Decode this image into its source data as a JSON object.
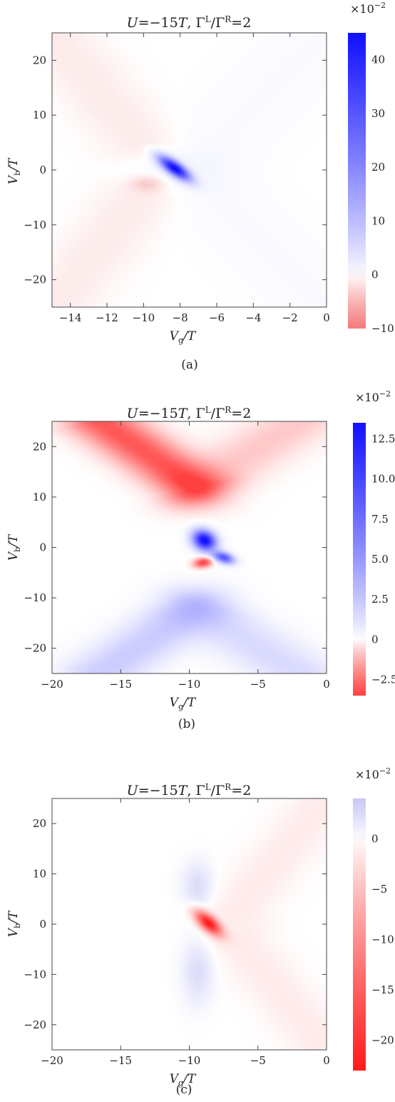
{
  "panels": [
    {
      "title": {
        "u": "U",
        "eq": "=−15",
        "t": "T",
        "sep": ",  ",
        "g1": "Γ",
        "s1": "L",
        "slash": "/",
        "g2": "Γ",
        "s2": "R",
        "rhs": "=2"
      },
      "ylabel": {
        "v": "V",
        "sub": "b",
        "rest": "/T"
      },
      "xlabel": {
        "v": "V",
        "sub": "g",
        "rest": "/T"
      },
      "caption": "(a)",
      "exponent": {
        "base": "×10",
        "pow": "−2"
      }
    },
    {
      "title": {
        "u": "U",
        "eq": "=−15",
        "t": "T",
        "sep": ",  ",
        "g1": "Γ",
        "s1": "L",
        "slash": "/",
        "g2": "Γ",
        "s2": "R",
        "rhs": "=2"
      },
      "ylabel": {
        "v": "V",
        "sub": "b",
        "rest": "/T"
      },
      "xlabel": {
        "v": "V",
        "sub": "g",
        "rest": "/T"
      },
      "caption": "(b)",
      "exponent": {
        "base": "×10",
        "pow": "−2"
      }
    },
    {
      "title": {
        "u": "U",
        "eq": "=−15",
        "t": "T",
        "sep": ",  ",
        "g1": "Γ",
        "s1": "L",
        "slash": "/",
        "g2": "Γ",
        "s2": "R",
        "rhs": "=2"
      },
      "ylabel": {
        "v": "V",
        "sub": "b",
        "rest": "/T"
      },
      "xlabel": {
        "v": "V",
        "sub": "g",
        "rest": "/T"
      },
      "caption": "(c)",
      "exponent": {
        "base": "×10",
        "pow": "−2"
      }
    }
  ],
  "chart_data": [
    {
      "type": "heatmap",
      "title": "U=−15T,  ΓL/ΓR=2",
      "xlabel": "Vg/T",
      "ylabel": "Vb/T",
      "xlim": [
        -15,
        0
      ],
      "ylim": [
        -25,
        25
      ],
      "xticks": [
        -14,
        -12,
        -10,
        -8,
        -6,
        -4,
        -2,
        0
      ],
      "yticks": [
        20,
        10,
        0,
        -10,
        -20
      ],
      "xtick_labels": [
        "−14",
        "−12",
        "−10",
        "−8",
        "−6",
        "−4",
        "−2",
        "0"
      ],
      "ytick_labels": [
        "20",
        "10",
        "0",
        "−10",
        "−20"
      ],
      "colorbar": {
        "range": [
          -10,
          45
        ],
        "ticks": [
          40,
          30,
          20,
          10,
          0,
          -10
        ],
        "tick_labels": [
          "40",
          "30",
          "20",
          "10",
          "0",
          "−10"
        ],
        "scale": "×10^-2",
        "pos_color": "#1010ff",
        "neg_color": "#f47a7a",
        "pos_max": 45,
        "neg_max": 10
      },
      "features": [
        {
          "kind": "line",
          "p1": [
            -10.2,
            5
          ],
          "p2": [
            -15,
            25
          ],
          "amp": -1.1,
          "sigma": 1.5
        },
        {
          "kind": "line",
          "p1": [
            -10.2,
            -5
          ],
          "p2": [
            -15,
            -25
          ],
          "amp": -1.1,
          "sigma": 1.5
        },
        {
          "kind": "line",
          "p1": [
            -7.5,
            0
          ],
          "p2": [
            0,
            25
          ],
          "amp": 0.55,
          "sigma": 2.0
        },
        {
          "kind": "line",
          "p1": [
            -7.5,
            0
          ],
          "p2": [
            0,
            -25
          ],
          "amp": 0.55,
          "sigma": 2.0
        },
        {
          "kind": "blob",
          "c": [
            -8.3,
            0.3
          ],
          "sx": 0.55,
          "sy": 1.4,
          "rho": -0.75,
          "amp": 45
        },
        {
          "kind": "blob",
          "c": [
            -9.8,
            -2.5
          ],
          "sx": 0.6,
          "sy": 1.0,
          "rho": 0,
          "amp": -3
        }
      ]
    },
    {
      "type": "heatmap",
      "title": "U=−15T,  ΓL/ΓR=2",
      "xlabel": "Vg/T",
      "ylabel": "Vb/T",
      "xlim": [
        -20,
        0
      ],
      "ylim": [
        -25,
        25
      ],
      "xticks": [
        -20,
        -15,
        -10,
        -5,
        0
      ],
      "yticks": [
        20,
        10,
        0,
        -10,
        -20
      ],
      "xtick_labels": [
        "−20",
        "−15",
        "−10",
        "−5",
        "0"
      ],
      "ytick_labels": [
        "20",
        "10",
        "0",
        "−10",
        "−20"
      ],
      "colorbar": {
        "range": [
          -3.5,
          13.5
        ],
        "ticks": [
          12.5,
          10.0,
          7.5,
          5.0,
          2.5,
          0,
          -2.5
        ],
        "tick_labels": [
          "12.5",
          "10.0",
          "7.5",
          "5.0",
          "2.5",
          "0",
          "−2.5"
        ],
        "scale": "×10^-2",
        "pos_color": "#1010ff",
        "neg_color": "#ff4040",
        "pos_max": 13.5,
        "neg_max": 3.5
      },
      "features": [
        {
          "kind": "line",
          "p1": [
            -9.5,
            12
          ],
          "p2": [
            -16.5,
            25
          ],
          "amp": -3.0,
          "sigma": 1.6
        },
        {
          "kind": "line",
          "p1": [
            -9.5,
            12
          ],
          "p2": [
            -2,
            25
          ],
          "amp": -0.8,
          "sigma": 1.8
        },
        {
          "kind": "line",
          "p1": [
            -9.5,
            -12
          ],
          "p2": [
            -16.5,
            -25
          ],
          "amp": 2.2,
          "sigma": 1.7
        },
        {
          "kind": "line",
          "p1": [
            -9.5,
            -12
          ],
          "p2": [
            -2,
            -25
          ],
          "amp": 1.5,
          "sigma": 1.8
        },
        {
          "kind": "blob",
          "c": [
            -8.9,
            1.4
          ],
          "sx": 0.55,
          "sy": 1.3,
          "rho": -0.2,
          "amp": 14
        },
        {
          "kind": "blob",
          "c": [
            -7.5,
            -2.0
          ],
          "sx": 0.5,
          "sy": 0.8,
          "rho": -0.4,
          "amp": 9
        },
        {
          "kind": "blob",
          "c": [
            -9.0,
            -3.0
          ],
          "sx": 0.45,
          "sy": 0.7,
          "rho": 0.2,
          "amp": -3.5
        }
      ]
    },
    {
      "type": "heatmap",
      "title": "U=−15T,  ΓL/ΓR=2",
      "xlabel": "Vg/T",
      "ylabel": "Vb/T",
      "xlim": [
        -20,
        0
      ],
      "ylim": [
        -25,
        25
      ],
      "xticks": [
        -20,
        -15,
        -10,
        -5,
        0
      ],
      "yticks": [
        20,
        10,
        0,
        -10,
        -20
      ],
      "xtick_labels": [
        "−20",
        "−15",
        "−10",
        "−5",
        "0"
      ],
      "ytick_labels": [
        "20",
        "10",
        "0",
        "−10",
        "−20"
      ],
      "colorbar": {
        "range": [
          -23,
          4
        ],
        "ticks": [
          0,
          -5,
          -10,
          -15,
          -20
        ],
        "tick_labels": [
          "0",
          "−5",
          "−10",
          "−15",
          "−20"
        ],
        "scale": "×10^-2",
        "pos_color": "#c8c8f8",
        "neg_color": "#ff1a1a",
        "pos_max": 4,
        "neg_max": 23
      },
      "features": [
        {
          "kind": "line",
          "p1": [
            -6.5,
            3
          ],
          "p2": [
            0,
            25
          ],
          "amp": -1.3,
          "sigma": 1.6
        },
        {
          "kind": "line",
          "p1": [
            -6.5,
            -3
          ],
          "p2": [
            0,
            -25
          ],
          "amp": -1.3,
          "sigma": 1.6
        },
        {
          "kind": "blob",
          "c": [
            -9.4,
            7.5
          ],
          "sx": 0.75,
          "sy": 3.2,
          "rho": 0,
          "amp": 2.3
        },
        {
          "kind": "blob",
          "c": [
            -9.4,
            -9.5
          ],
          "sx": 0.75,
          "sy": 4.2,
          "rho": 0,
          "amp": 2.3
        },
        {
          "kind": "blob",
          "c": [
            -8.6,
            0.2
          ],
          "sx": 0.65,
          "sy": 1.6,
          "rho": -0.65,
          "amp": -23
        }
      ]
    }
  ]
}
